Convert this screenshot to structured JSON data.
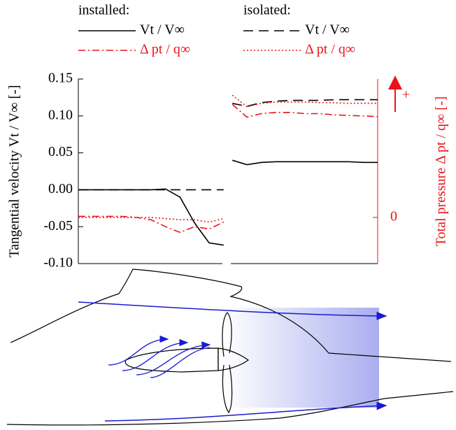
{
  "chart_data": {
    "type": "line",
    "legend_titles": [
      "installed:",
      "isolated:"
    ],
    "ylabel": "Tangential velocity Vt / V∞ [-]",
    "y2label": "Total pressure Δ pt / q∞ [-]",
    "y2_direction_label": "+",
    "x": [
      0,
      0.1,
      0.2,
      0.3,
      0.4,
      0.5,
      0.6,
      0.7,
      0.8,
      0.9,
      1.0,
      1.03,
      1.06,
      1.16,
      1.26,
      1.36,
      1.46,
      1.56,
      1.66,
      1.76,
      1.86,
      1.96,
      2.06
    ],
    "xlim": [
      0,
      2.06
    ],
    "ylim": [
      -0.1,
      0.15
    ],
    "yticks": [
      {
        "value": -0.1,
        "label": "-0.10"
      },
      -0.05,
      {
        "value": 0,
        "label": "0.00"
      },
      0.05,
      {
        "value": 0.1,
        "label": "0.10"
      },
      0.15
    ],
    "y2lim": [
      -2,
      6
    ],
    "y2ticks": [
      0
    ],
    "y2color": "#e8141a",
    "series": [
      {
        "name": "Vt / V∞",
        "color": "#000000",
        "dash": "solid",
        "values": [
          0,
          0,
          0,
          0,
          0,
          0,
          0.001,
          -0.01,
          -0.045,
          -0.072,
          -0.075,
          null,
          0.04,
          0.034,
          0.037,
          0.038,
          0.038,
          0.038,
          0.038,
          0.038,
          0.038,
          0.037,
          0.037
        ]
      },
      {
        "name": "Δ pt / q∞",
        "color": "#e8141a",
        "dash": "dashdot",
        "axis": "y2",
        "values": [
          0.05,
          0.05,
          0.05,
          0.05,
          0.0,
          -0.1,
          -0.4,
          -0.65,
          -0.4,
          -0.5,
          -0.2,
          null,
          4.9,
          4.35,
          4.5,
          4.55,
          4.55,
          4.5,
          4.5,
          4.45,
          4.42,
          4.4,
          4.37
        ]
      },
      {
        "name": "Vt / V∞",
        "color": "#000000",
        "dash": "dashed",
        "values": [
          0,
          0,
          0,
          0,
          0,
          0,
          0,
          0,
          0,
          0,
          0,
          null,
          0.117,
          0.113,
          0.118,
          0.12,
          0.121,
          0.121,
          0.121,
          0.122,
          0.122,
          0.122,
          0.122
        ]
      },
      {
        "name": "Δ pt / q∞",
        "color": "#e8141a",
        "dash": "dotted",
        "axis": "y2",
        "values": [
          0,
          0,
          0,
          0,
          0,
          0,
          -0.05,
          -0.1,
          -0.1,
          -0.2,
          -0.05,
          null,
          5.3,
          4.8,
          4.95,
          5.0,
          5.0,
          5.0,
          4.98,
          4.97,
          4.95,
          4.95,
          4.95
        ]
      }
    ]
  }
}
